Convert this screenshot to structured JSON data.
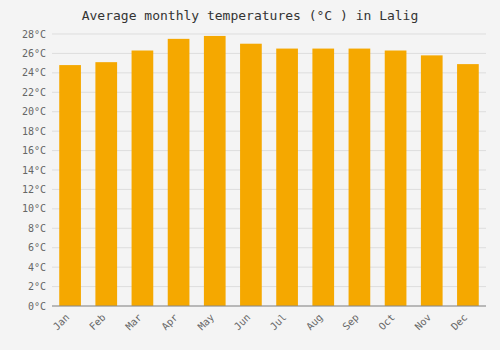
{
  "chart_data": {
    "type": "bar",
    "title": "Average monthly temperatures (°C ) in Lalig",
    "categories": [
      "Jan",
      "Feb",
      "Mar",
      "Apr",
      "May",
      "Jun",
      "Jul",
      "Aug",
      "Sep",
      "Oct",
      "Nov",
      "Dec"
    ],
    "values": [
      24.8,
      25.1,
      26.3,
      27.5,
      27.8,
      27.0,
      26.5,
      26.5,
      26.5,
      26.3,
      25.8,
      24.9
    ],
    "color": "#F5A800",
    "ylim": [
      0,
      28
    ],
    "yticks": [
      {
        "value": 0,
        "label": "0°C"
      },
      {
        "value": 2,
        "label": "2°C"
      },
      {
        "value": 4,
        "label": "4°C"
      },
      {
        "value": 6,
        "label": "6°C"
      },
      {
        "value": 8,
        "label": "8°C"
      },
      {
        "value": 10,
        "label": "10°C"
      },
      {
        "value": 12,
        "label": "12°C"
      },
      {
        "value": 14,
        "label": "14°C"
      },
      {
        "value": 16,
        "label": "16°C"
      },
      {
        "value": 18,
        "label": "18°C"
      },
      {
        "value": 20,
        "label": "20°C"
      },
      {
        "value": 22,
        "label": "22°C"
      },
      {
        "value": 24,
        "label": "24°C"
      },
      {
        "value": 26,
        "label": "26°C"
      },
      {
        "value": 28,
        "label": "28°C"
      }
    ],
    "grid": true
  }
}
